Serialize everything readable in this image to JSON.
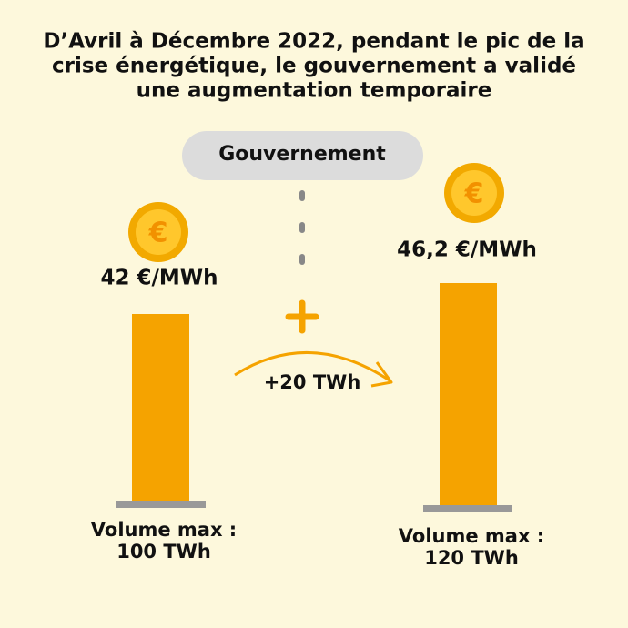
{
  "title": {
    "lines": [
      "D’Avril à Décembre 2022, pendant le pic de la",
      "crise énergétique, le gouvernement a validé",
      "une augmentation temporaire"
    ]
  },
  "badge": "Gouvernement",
  "left": {
    "price": "42 €/MWh",
    "volume_label": "Volume max :",
    "volume": "100 TWh"
  },
  "right": {
    "price": "46,2 €/MWh",
    "volume_label": "Volume max :",
    "volume": "120 TWh"
  },
  "increase": "+20 TWh"
}
